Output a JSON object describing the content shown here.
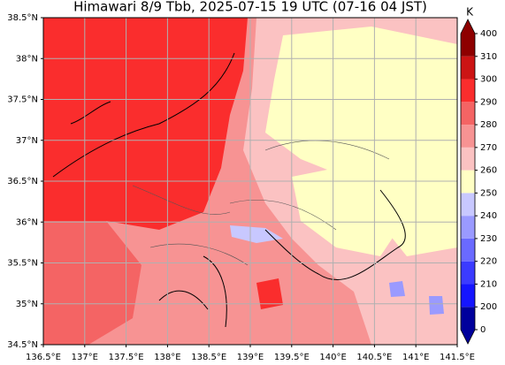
{
  "title": "Himawari 8/9 Tbb, 2025-07-15 19 UTC (07-16 04 JST)",
  "map": {
    "lonlim": [
      136.5,
      141.5
    ],
    "latlim": [
      34.5,
      38.5
    ],
    "lon_ticks": [
      {
        "value": 136.5,
        "label": "136.5°E"
      },
      {
        "value": 137,
        "label": "137°E"
      },
      {
        "value": 137.5,
        "label": "137.5°E"
      },
      {
        "value": 138,
        "label": "138°E"
      },
      {
        "value": 138.5,
        "label": "138.5°E"
      },
      {
        "value": 139,
        "label": "139°E"
      },
      {
        "value": 139.5,
        "label": "139.5°E"
      },
      {
        "value": 140,
        "label": "140°E"
      },
      {
        "value": 140.5,
        "label": "140.5°E"
      },
      {
        "value": 141,
        "label": "141°E"
      },
      {
        "value": 141.5,
        "label": "141.5°E"
      }
    ],
    "lat_ticks": [
      {
        "value": 34.5,
        "label": "34.5°N"
      },
      {
        "value": 35,
        "label": "35°N"
      },
      {
        "value": 35.5,
        "label": "35.5°N"
      },
      {
        "value": 36,
        "label": "36°N"
      },
      {
        "value": 36.5,
        "label": "36.5°N"
      },
      {
        "value": 37,
        "label": "37°N"
      },
      {
        "value": 37.5,
        "label": "37.5°N"
      },
      {
        "value": 38,
        "label": "38°N"
      },
      {
        "value": 38.5,
        "label": "38.5°N"
      }
    ],
    "grid": true
  },
  "colorbar": {
    "label": "K",
    "ticks": [
      0,
      200,
      210,
      220,
      230,
      240,
      250,
      260,
      270,
      280,
      290,
      300,
      310,
      400
    ],
    "colors": [
      "#00009c",
      "#1515ff",
      "#3b3bff",
      "#6a6aff",
      "#9a9aff",
      "#c8c8ff",
      "#ffffc4",
      "#fbc2c2",
      "#f79393",
      "#f46464",
      "#fa2d2d",
      "#cc1414",
      "#8e0000"
    ]
  }
}
